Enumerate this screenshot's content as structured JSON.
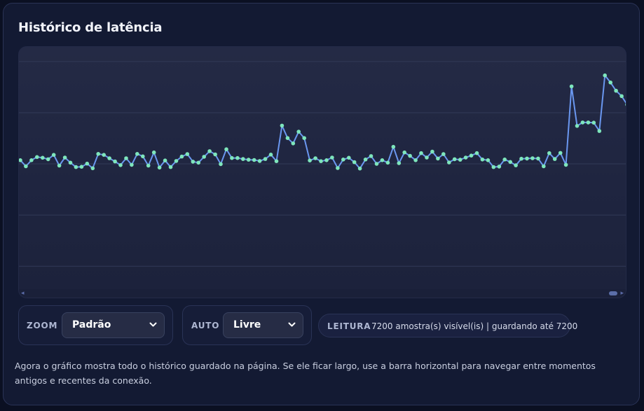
{
  "panel": {
    "title": "Histórico de latência"
  },
  "chart_data": {
    "type": "line",
    "y": [
      0.535,
      0.51,
      0.535,
      0.548,
      0.545,
      0.539,
      0.557,
      0.513,
      0.546,
      0.525,
      0.507,
      0.508,
      0.521,
      0.502,
      0.561,
      0.557,
      0.543,
      0.53,
      0.515,
      0.543,
      0.516,
      0.561,
      0.551,
      0.513,
      0.567,
      0.505,
      0.534,
      0.507,
      0.532,
      0.55,
      0.56,
      0.529,
      0.525,
      0.549,
      0.572,
      0.559,
      0.519,
      0.58,
      0.544,
      0.544,
      0.54,
      0.537,
      0.536,
      0.532,
      0.54,
      0.558,
      0.531,
      0.677,
      0.626,
      0.604,
      0.652,
      0.626,
      0.534,
      0.543,
      0.531,
      0.535,
      0.546,
      0.503,
      0.538,
      0.545,
      0.527,
      0.501,
      0.538,
      0.552,
      0.52,
      0.535,
      0.525,
      0.59,
      0.523,
      0.567,
      0.553,
      0.535,
      0.564,
      0.546,
      0.57,
      0.542,
      0.56,
      0.526,
      0.539,
      0.537,
      0.546,
      0.554,
      0.564,
      0.538,
      0.535,
      0.507,
      0.509,
      0.538,
      0.528,
      0.514,
      0.541,
      0.542,
      0.543,
      0.542,
      0.51,
      0.564,
      0.54,
      0.565,
      0.516,
      0.838,
      0.676,
      0.69,
      0.69,
      0.689,
      0.655,
      0.883,
      0.854,
      0.82,
      0.798,
      0.763
    ],
    "ylim": [
      0,
      1
    ],
    "grid": true,
    "line_color": "#6a97f0",
    "point_color": "#7ee6bc",
    "grid_color": "#323a57"
  },
  "scrollbar": {
    "left_arrow": "◂",
    "right_arrow": "▸"
  },
  "controls": {
    "zoom": {
      "label": "ZOOM",
      "value": "Padrão",
      "chevron": "⌄"
    },
    "auto": {
      "label": "AUTO",
      "value": "Livre",
      "chevron": "⌄"
    },
    "reading": {
      "label": "LEITURA",
      "text": "7200 amostra(s) visível(is) | guardando até 7200"
    }
  },
  "description": "Agora o gráfico mostra todo o histórico guardado na página. Se ele ficar largo, use a barra horizontal para navegar entre momentos antigos e recentes da conexão."
}
